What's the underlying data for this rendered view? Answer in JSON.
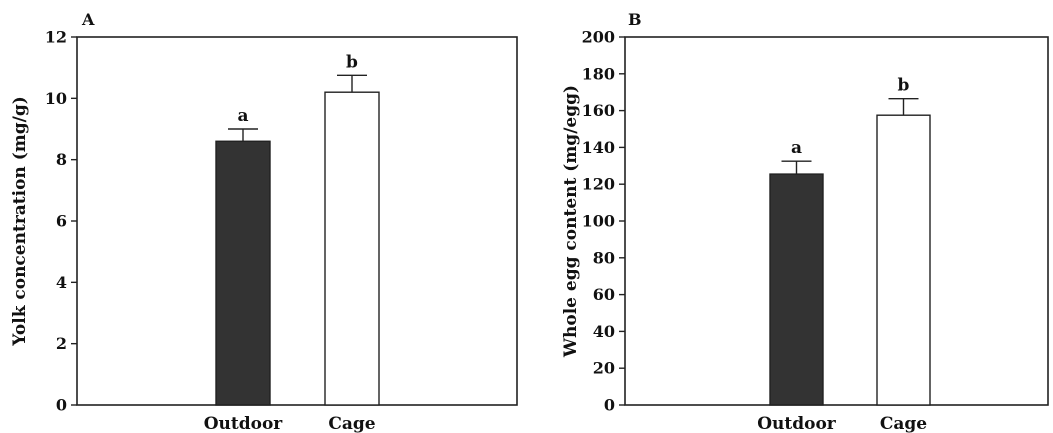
{
  "chart_data": [
    {
      "type": "bar",
      "panel_label": "A",
      "title": "",
      "xlabel": "",
      "ylabel": "Yolk concentration (mg/g)",
      "categories": [
        "Outdoor",
        "Cage"
      ],
      "values": [
        8.6,
        10.2
      ],
      "errors": [
        0.4,
        0.55
      ],
      "significance": [
        "a",
        "b"
      ],
      "bar_colors": [
        "#333333",
        "#ffffff"
      ],
      "ylim": [
        0,
        12
      ],
      "yticks": [
        0,
        2,
        4,
        6,
        8,
        10,
        12
      ],
      "grid": false,
      "legend": "none"
    },
    {
      "type": "bar",
      "panel_label": "B",
      "title": "",
      "xlabel": "",
      "ylabel": "Whole egg content (mg/egg)",
      "categories": [
        "Outdoor",
        "Cage"
      ],
      "values": [
        125.5,
        157.5
      ],
      "errors": [
        7,
        9
      ],
      "significance": [
        "a",
        "b"
      ],
      "bar_colors": [
        "#333333",
        "#ffffff"
      ],
      "ylim": [
        0,
        200
      ],
      "yticks": [
        0,
        20,
        40,
        60,
        80,
        100,
        120,
        140,
        160,
        180,
        200
      ],
      "grid": false,
      "legend": "none"
    }
  ]
}
